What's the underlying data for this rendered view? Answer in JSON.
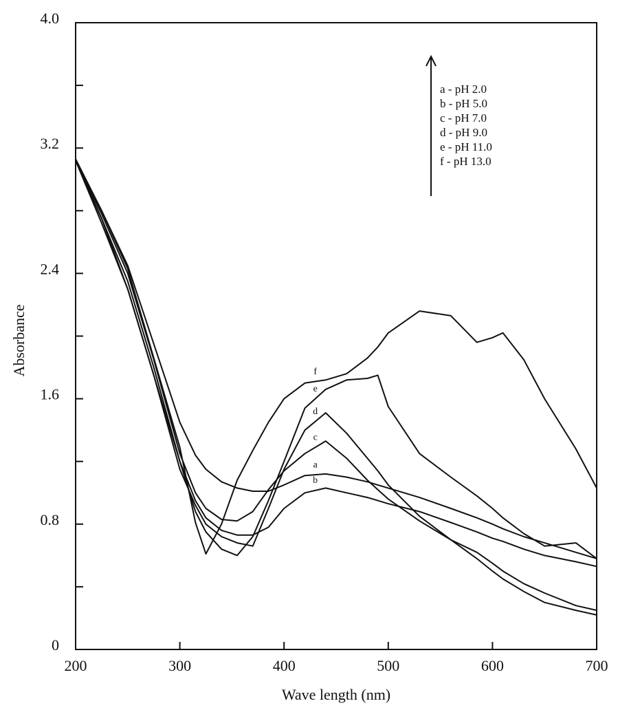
{
  "chart_data": {
    "type": "line",
    "xlabel": "Wave length (nm)",
    "ylabel": "Absorbance",
    "x": [
      200,
      225,
      250,
      275,
      300,
      315,
      325,
      340,
      355,
      370,
      385,
      400,
      420,
      440,
      460,
      480,
      490,
      500,
      530,
      560,
      585,
      600,
      610,
      630,
      650,
      680,
      700
    ],
    "series": [
      {
        "name": "a",
        "label": "a - pH 2.0",
        "color": "#111111",
        "values": [
          3.12,
          2.8,
          2.45,
          1.95,
          1.45,
          1.24,
          1.15,
          1.07,
          1.03,
          1.01,
          1.01,
          1.05,
          1.11,
          1.12,
          1.1,
          1.07,
          1.05,
          1.03,
          0.97,
          0.9,
          0.84,
          0.8,
          0.77,
          0.72,
          0.68,
          0.62,
          0.58
        ]
      },
      {
        "name": "b",
        "label": "b - pH 5.0",
        "color": "#111111",
        "values": [
          3.12,
          2.72,
          2.3,
          1.75,
          1.2,
          0.95,
          0.84,
          0.76,
          0.73,
          0.73,
          0.78,
          0.9,
          1.0,
          1.03,
          1.0,
          0.97,
          0.95,
          0.93,
          0.88,
          0.81,
          0.75,
          0.71,
          0.69,
          0.64,
          0.6,
          0.56,
          0.53
        ]
      },
      {
        "name": "c",
        "label": "c - pH 7.0",
        "color": "#111111",
        "values": [
          3.12,
          2.78,
          2.4,
          1.85,
          1.25,
          1.0,
          0.9,
          0.83,
          0.82,
          0.88,
          1.02,
          1.14,
          1.25,
          1.33,
          1.22,
          1.08,
          1.02,
          0.96,
          0.82,
          0.7,
          0.62,
          0.55,
          0.5,
          0.42,
          0.36,
          0.28,
          0.25
        ]
      },
      {
        "name": "d",
        "label": "d - pH 9.0",
        "color": "#111111",
        "values": [
          3.12,
          2.75,
          2.3,
          1.75,
          1.15,
          0.92,
          0.8,
          0.72,
          0.68,
          0.66,
          0.9,
          1.15,
          1.4,
          1.51,
          1.38,
          1.22,
          1.14,
          1.05,
          0.85,
          0.7,
          0.58,
          0.5,
          0.45,
          0.37,
          0.3,
          0.25,
          0.22
        ]
      },
      {
        "name": "e",
        "label": "e - pH 11.0",
        "color": "#111111",
        "values": [
          3.12,
          2.75,
          2.35,
          1.8,
          1.2,
          0.88,
          0.75,
          0.64,
          0.6,
          0.72,
          0.95,
          1.2,
          1.54,
          1.66,
          1.72,
          1.73,
          1.75,
          1.55,
          1.25,
          1.1,
          0.98,
          0.9,
          0.84,
          0.74,
          0.66,
          0.68,
          0.58
        ]
      },
      {
        "name": "f",
        "label": "f - pH 13.0",
        "color": "#111111",
        "values": [
          3.13,
          2.8,
          2.43,
          1.86,
          1.29,
          0.81,
          0.61,
          0.8,
          1.08,
          1.27,
          1.45,
          1.6,
          1.7,
          1.72,
          1.76,
          1.86,
          1.93,
          2.02,
          2.16,
          2.13,
          1.96,
          1.99,
          2.02,
          1.85,
          1.6,
          1.28,
          1.03
        ]
      }
    ],
    "xlim": [
      200,
      700
    ],
    "xticks": [
      200,
      300,
      400,
      500,
      600,
      700
    ],
    "ylim": [
      0,
      4
    ],
    "yticks": [
      0,
      0.8,
      1.6,
      2.4,
      3.2,
      {
        "value": 4,
        "label": "4.0"
      }
    ],
    "yminor_ticks": [
      0.4,
      1.2,
      2.0,
      2.8,
      3.6
    ]
  }
}
